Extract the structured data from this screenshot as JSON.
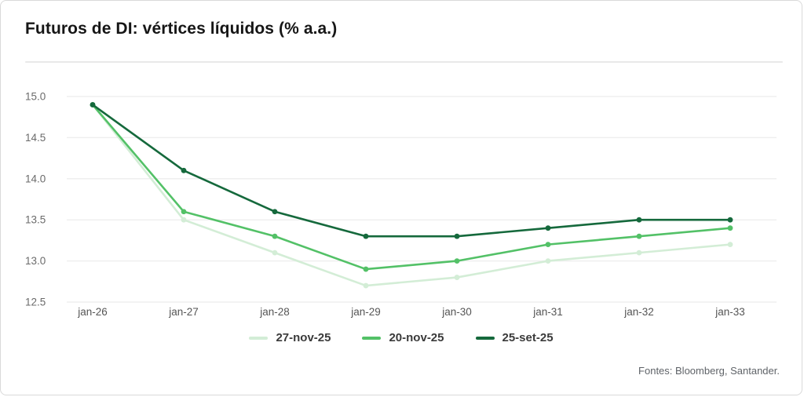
{
  "header": {
    "title": "Futuros de DI: vértices líquidos (% a.a.)"
  },
  "footer": {
    "source": "Fontes: Bloomberg, Santander."
  },
  "colors": {
    "card_border": "#d9d9d9",
    "divider": "#e9e9e9",
    "gridline": "#efefef",
    "y_tick_label": "#6b6b6b",
    "x_tick_label": "#555555",
    "legend_text": "#3a3a3a",
    "title_text": "#161616",
    "source_text": "#5f6368",
    "series_light": "#d3edd6",
    "series_medium": "#53c167",
    "series_dark": "#15693c"
  },
  "chart_data": {
    "type": "line",
    "title": "Futuros de DI: vértices líquidos (% a.a.)",
    "xlabel": "",
    "ylabel": "",
    "categories": [
      "jan-26",
      "jan-27",
      "jan-28",
      "jan-29",
      "jan-30",
      "jan-31",
      "jan-32",
      "jan-33"
    ],
    "series": [
      {
        "name": "27-nov-25",
        "color": "#d3edd6",
        "values": [
          14.9,
          13.5,
          13.1,
          12.7,
          12.8,
          13.0,
          13.1,
          13.2
        ]
      },
      {
        "name": "20-nov-25",
        "color": "#53c167",
        "values": [
          14.9,
          13.6,
          13.3,
          12.9,
          13.0,
          13.2,
          13.3,
          13.4
        ]
      },
      {
        "name": "25-set-25",
        "color": "#15693c",
        "values": [
          14.9,
          14.1,
          13.6,
          13.3,
          13.3,
          13.4,
          13.5,
          13.5
        ]
      }
    ],
    "ylim": [
      12.5,
      15.0
    ],
    "yticks": [
      "15.0",
      "14.5",
      "14.0",
      "13.5",
      "13.0",
      "12.5"
    ],
    "grid": true,
    "legend_position": "bottom-center",
    "markers": true
  }
}
